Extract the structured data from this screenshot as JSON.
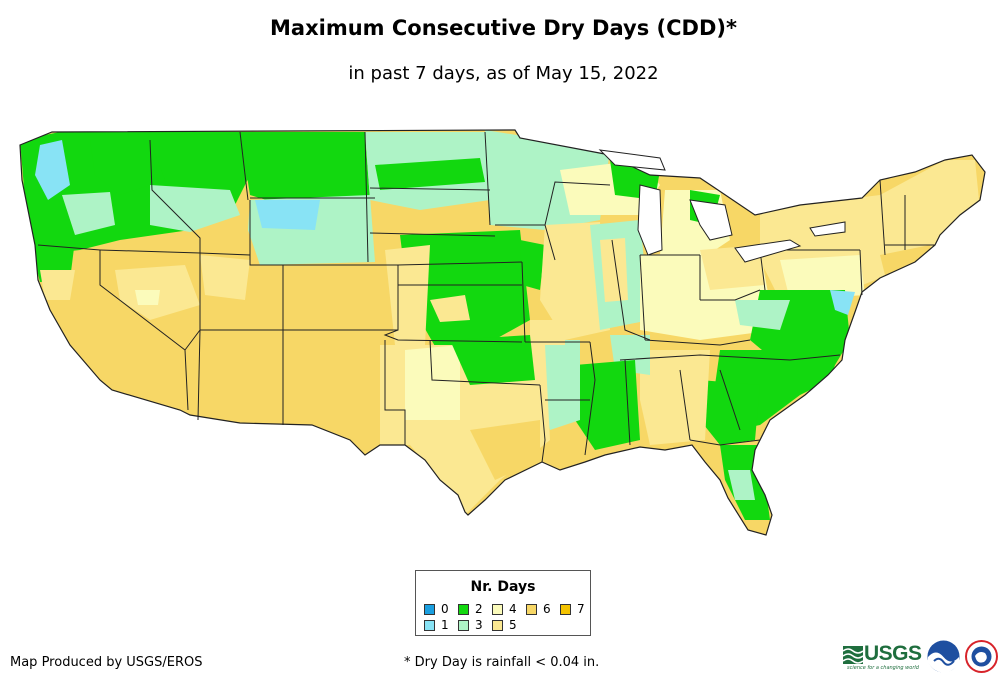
{
  "title": "Maximum Consecutive Dry Days (CDD)*",
  "subtitle": "in past 7 days, as of May 15, 2022",
  "legend": {
    "title": "Nr. Days",
    "items": [
      {
        "label": "0",
        "color": "#1a9fe0"
      },
      {
        "label": "1",
        "color": "#88e3f5"
      },
      {
        "label": "2",
        "color": "#12d80f"
      },
      {
        "label": "3",
        "color": "#aef3c6"
      },
      {
        "label": "4",
        "color": "#fbfbbb"
      },
      {
        "label": "5",
        "color": "#fbe892"
      },
      {
        "label": "6",
        "color": "#f7d766"
      },
      {
        "label": "7",
        "color": "#f4c300"
      }
    ]
  },
  "footer": {
    "credit": "Map Produced by USGS/EROS",
    "footnote": "* Dry Day is rainfall < 0.04 in."
  },
  "logos": {
    "usgs": "USGS",
    "usgs_tagline": "science for a changing world",
    "noaa": "noaa-logo",
    "nws": "nws-logo"
  }
}
